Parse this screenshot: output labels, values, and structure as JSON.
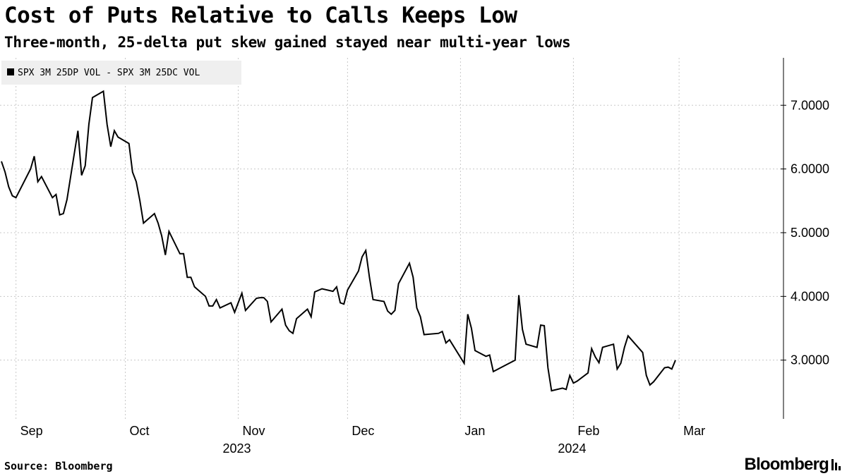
{
  "header": {
    "title": "Cost of Puts Relative to Calls Keeps Low",
    "subtitle": "Three-month, 25-delta put skew gained stayed near multi-year lows"
  },
  "footer": {
    "source": "Source: Bloomberg",
    "brand": "Bloomberg"
  },
  "chart_data": {
    "type": "line",
    "title": "Cost of Puts Relative to Calls Keeps Low",
    "subtitle": "Three-month, 25-delta put skew gained stayed near multi-year lows",
    "legend": {
      "position": "top-left",
      "entries": [
        "SPX 3M 25DP VOL - SPX 3M 25DC VOL"
      ]
    },
    "xlim": [
      "2023-08-28",
      "2024-03-25"
    ],
    "ylim": [
      2.1,
      7.7
    ],
    "y_ticks": [
      3,
      4,
      5,
      6,
      7
    ],
    "y_tick_labels": [
      "3.0000",
      "4.0000",
      "5.0000",
      "6.0000",
      "7.0000"
    ],
    "y_axis_position": "right",
    "grid": true,
    "x_ticks": [
      {
        "date": "2023-09-01",
        "label": "Sep"
      },
      {
        "date": "2023-10-01",
        "label": "Oct"
      },
      {
        "date": "2023-11-01",
        "label": "Nov"
      },
      {
        "date": "2023-12-01",
        "label": "Dec"
      },
      {
        "date": "2024-01-01",
        "label": "Jan"
      },
      {
        "date": "2024-02-01",
        "label": "Feb"
      },
      {
        "date": "2024-03-01",
        "label": "Mar"
      }
    ],
    "year_labels": [
      {
        "date": "2023-11-01",
        "label": "2023"
      },
      {
        "date": "2024-02-01",
        "label": "2024"
      }
    ],
    "series": [
      {
        "name": "SPX 3M 25DP VOL - SPX 3M 25DC VOL",
        "color": "#000000",
        "points": [
          [
            "2023-08-28",
            6.12
          ],
          [
            "2023-08-29",
            5.95
          ],
          [
            "2023-08-30",
            5.72
          ],
          [
            "2023-08-31",
            5.58
          ],
          [
            "2023-09-01",
            5.55
          ],
          [
            "2023-09-05",
            6.0
          ],
          [
            "2023-09-06",
            6.2
          ],
          [
            "2023-09-07",
            5.8
          ],
          [
            "2023-09-08",
            5.88
          ],
          [
            "2023-09-11",
            5.55
          ],
          [
            "2023-09-12",
            5.6
          ],
          [
            "2023-09-13",
            5.28
          ],
          [
            "2023-09-14",
            5.3
          ],
          [
            "2023-09-15",
            5.52
          ],
          [
            "2023-09-18",
            6.6
          ],
          [
            "2023-09-19",
            5.9
          ],
          [
            "2023-09-20",
            6.05
          ],
          [
            "2023-09-21",
            6.7
          ],
          [
            "2023-09-22",
            7.12
          ],
          [
            "2023-09-25",
            7.22
          ],
          [
            "2023-09-26",
            6.7
          ],
          [
            "2023-09-27",
            6.35
          ],
          [
            "2023-09-28",
            6.6
          ],
          [
            "2023-09-29",
            6.5
          ],
          [
            "2023-10-02",
            6.4
          ],
          [
            "2023-10-03",
            5.95
          ],
          [
            "2023-10-04",
            5.8
          ],
          [
            "2023-10-05",
            5.5
          ],
          [
            "2023-10-06",
            5.15
          ],
          [
            "2023-10-09",
            5.3
          ],
          [
            "2023-10-10",
            5.15
          ],
          [
            "2023-10-11",
            4.95
          ],
          [
            "2023-10-12",
            4.65
          ],
          [
            "2023-10-13",
            5.02
          ],
          [
            "2023-10-16",
            4.67
          ],
          [
            "2023-10-17",
            4.67
          ],
          [
            "2023-10-18",
            4.3
          ],
          [
            "2023-10-19",
            4.3
          ],
          [
            "2023-10-20",
            4.15
          ],
          [
            "2023-10-23",
            4.0
          ],
          [
            "2023-10-24",
            3.85
          ],
          [
            "2023-10-25",
            3.85
          ],
          [
            "2023-10-26",
            3.95
          ],
          [
            "2023-10-27",
            3.82
          ],
          [
            "2023-10-30",
            3.9
          ],
          [
            "2023-10-31",
            3.75
          ],
          [
            "2023-11-01",
            3.9
          ],
          [
            "2023-11-02",
            4.05
          ],
          [
            "2023-11-03",
            3.78
          ],
          [
            "2023-11-06",
            3.97
          ],
          [
            "2023-11-07",
            3.98
          ],
          [
            "2023-11-08",
            3.98
          ],
          [
            "2023-11-09",
            3.92
          ],
          [
            "2023-11-10",
            3.6
          ],
          [
            "2023-11-13",
            3.8
          ],
          [
            "2023-11-14",
            3.55
          ],
          [
            "2023-11-15",
            3.46
          ],
          [
            "2023-11-16",
            3.42
          ],
          [
            "2023-11-17",
            3.65
          ],
          [
            "2023-11-20",
            3.8
          ],
          [
            "2023-11-21",
            3.68
          ],
          [
            "2023-11-22",
            4.07
          ],
          [
            "2023-11-24",
            4.12
          ],
          [
            "2023-11-27",
            4.08
          ],
          [
            "2023-11-28",
            4.15
          ],
          [
            "2023-11-29",
            3.9
          ],
          [
            "2023-11-30",
            3.88
          ],
          [
            "2023-12-01",
            4.1
          ],
          [
            "2023-12-04",
            4.4
          ],
          [
            "2023-12-05",
            4.62
          ],
          [
            "2023-12-06",
            4.72
          ],
          [
            "2023-12-07",
            4.3
          ],
          [
            "2023-12-08",
            3.95
          ],
          [
            "2023-12-11",
            3.92
          ],
          [
            "2023-12-12",
            3.77
          ],
          [
            "2023-12-13",
            3.72
          ],
          [
            "2023-12-14",
            3.78
          ],
          [
            "2023-12-15",
            4.2
          ],
          [
            "2023-12-18",
            4.52
          ],
          [
            "2023-12-19",
            4.3
          ],
          [
            "2023-12-20",
            3.82
          ],
          [
            "2023-12-21",
            3.68
          ],
          [
            "2023-12-22",
            3.4
          ],
          [
            "2023-12-26",
            3.42
          ],
          [
            "2023-12-27",
            3.45
          ],
          [
            "2023-12-28",
            3.27
          ],
          [
            "2023-12-29",
            3.32
          ],
          [
            "2024-01-02",
            2.95
          ],
          [
            "2024-01-03",
            3.72
          ],
          [
            "2024-01-04",
            3.5
          ],
          [
            "2024-01-05",
            3.15
          ],
          [
            "2024-01-08",
            3.06
          ],
          [
            "2024-01-09",
            3.08
          ],
          [
            "2024-01-10",
            2.82
          ],
          [
            "2024-01-11",
            2.85
          ],
          [
            "2024-01-12",
            2.88
          ],
          [
            "2024-01-16",
            3.0
          ],
          [
            "2024-01-17",
            4.02
          ],
          [
            "2024-01-18",
            3.48
          ],
          [
            "2024-01-19",
            3.25
          ],
          [
            "2024-01-22",
            3.2
          ],
          [
            "2024-01-23",
            3.55
          ],
          [
            "2024-01-24",
            3.54
          ],
          [
            "2024-01-25",
            2.88
          ],
          [
            "2024-01-26",
            2.52
          ],
          [
            "2024-01-29",
            2.56
          ],
          [
            "2024-01-30",
            2.54
          ],
          [
            "2024-01-31",
            2.76
          ],
          [
            "2024-02-01",
            2.64
          ],
          [
            "2024-02-02",
            2.67
          ],
          [
            "2024-02-05",
            2.8
          ],
          [
            "2024-02-06",
            3.18
          ],
          [
            "2024-02-07",
            3.05
          ],
          [
            "2024-02-08",
            2.96
          ],
          [
            "2024-02-09",
            3.2
          ],
          [
            "2024-02-12",
            3.25
          ],
          [
            "2024-02-13",
            2.86
          ],
          [
            "2024-02-14",
            2.95
          ],
          [
            "2024-02-15",
            3.2
          ],
          [
            "2024-02-16",
            3.38
          ],
          [
            "2024-02-20",
            3.12
          ],
          [
            "2024-02-21",
            2.76
          ],
          [
            "2024-02-22",
            2.61
          ],
          [
            "2024-02-23",
            2.66
          ],
          [
            "2024-02-26",
            2.88
          ],
          [
            "2024-02-27",
            2.89
          ],
          [
            "2024-02-28",
            2.86
          ],
          [
            "2024-02-29",
            3.0
          ]
        ]
      }
    ]
  }
}
